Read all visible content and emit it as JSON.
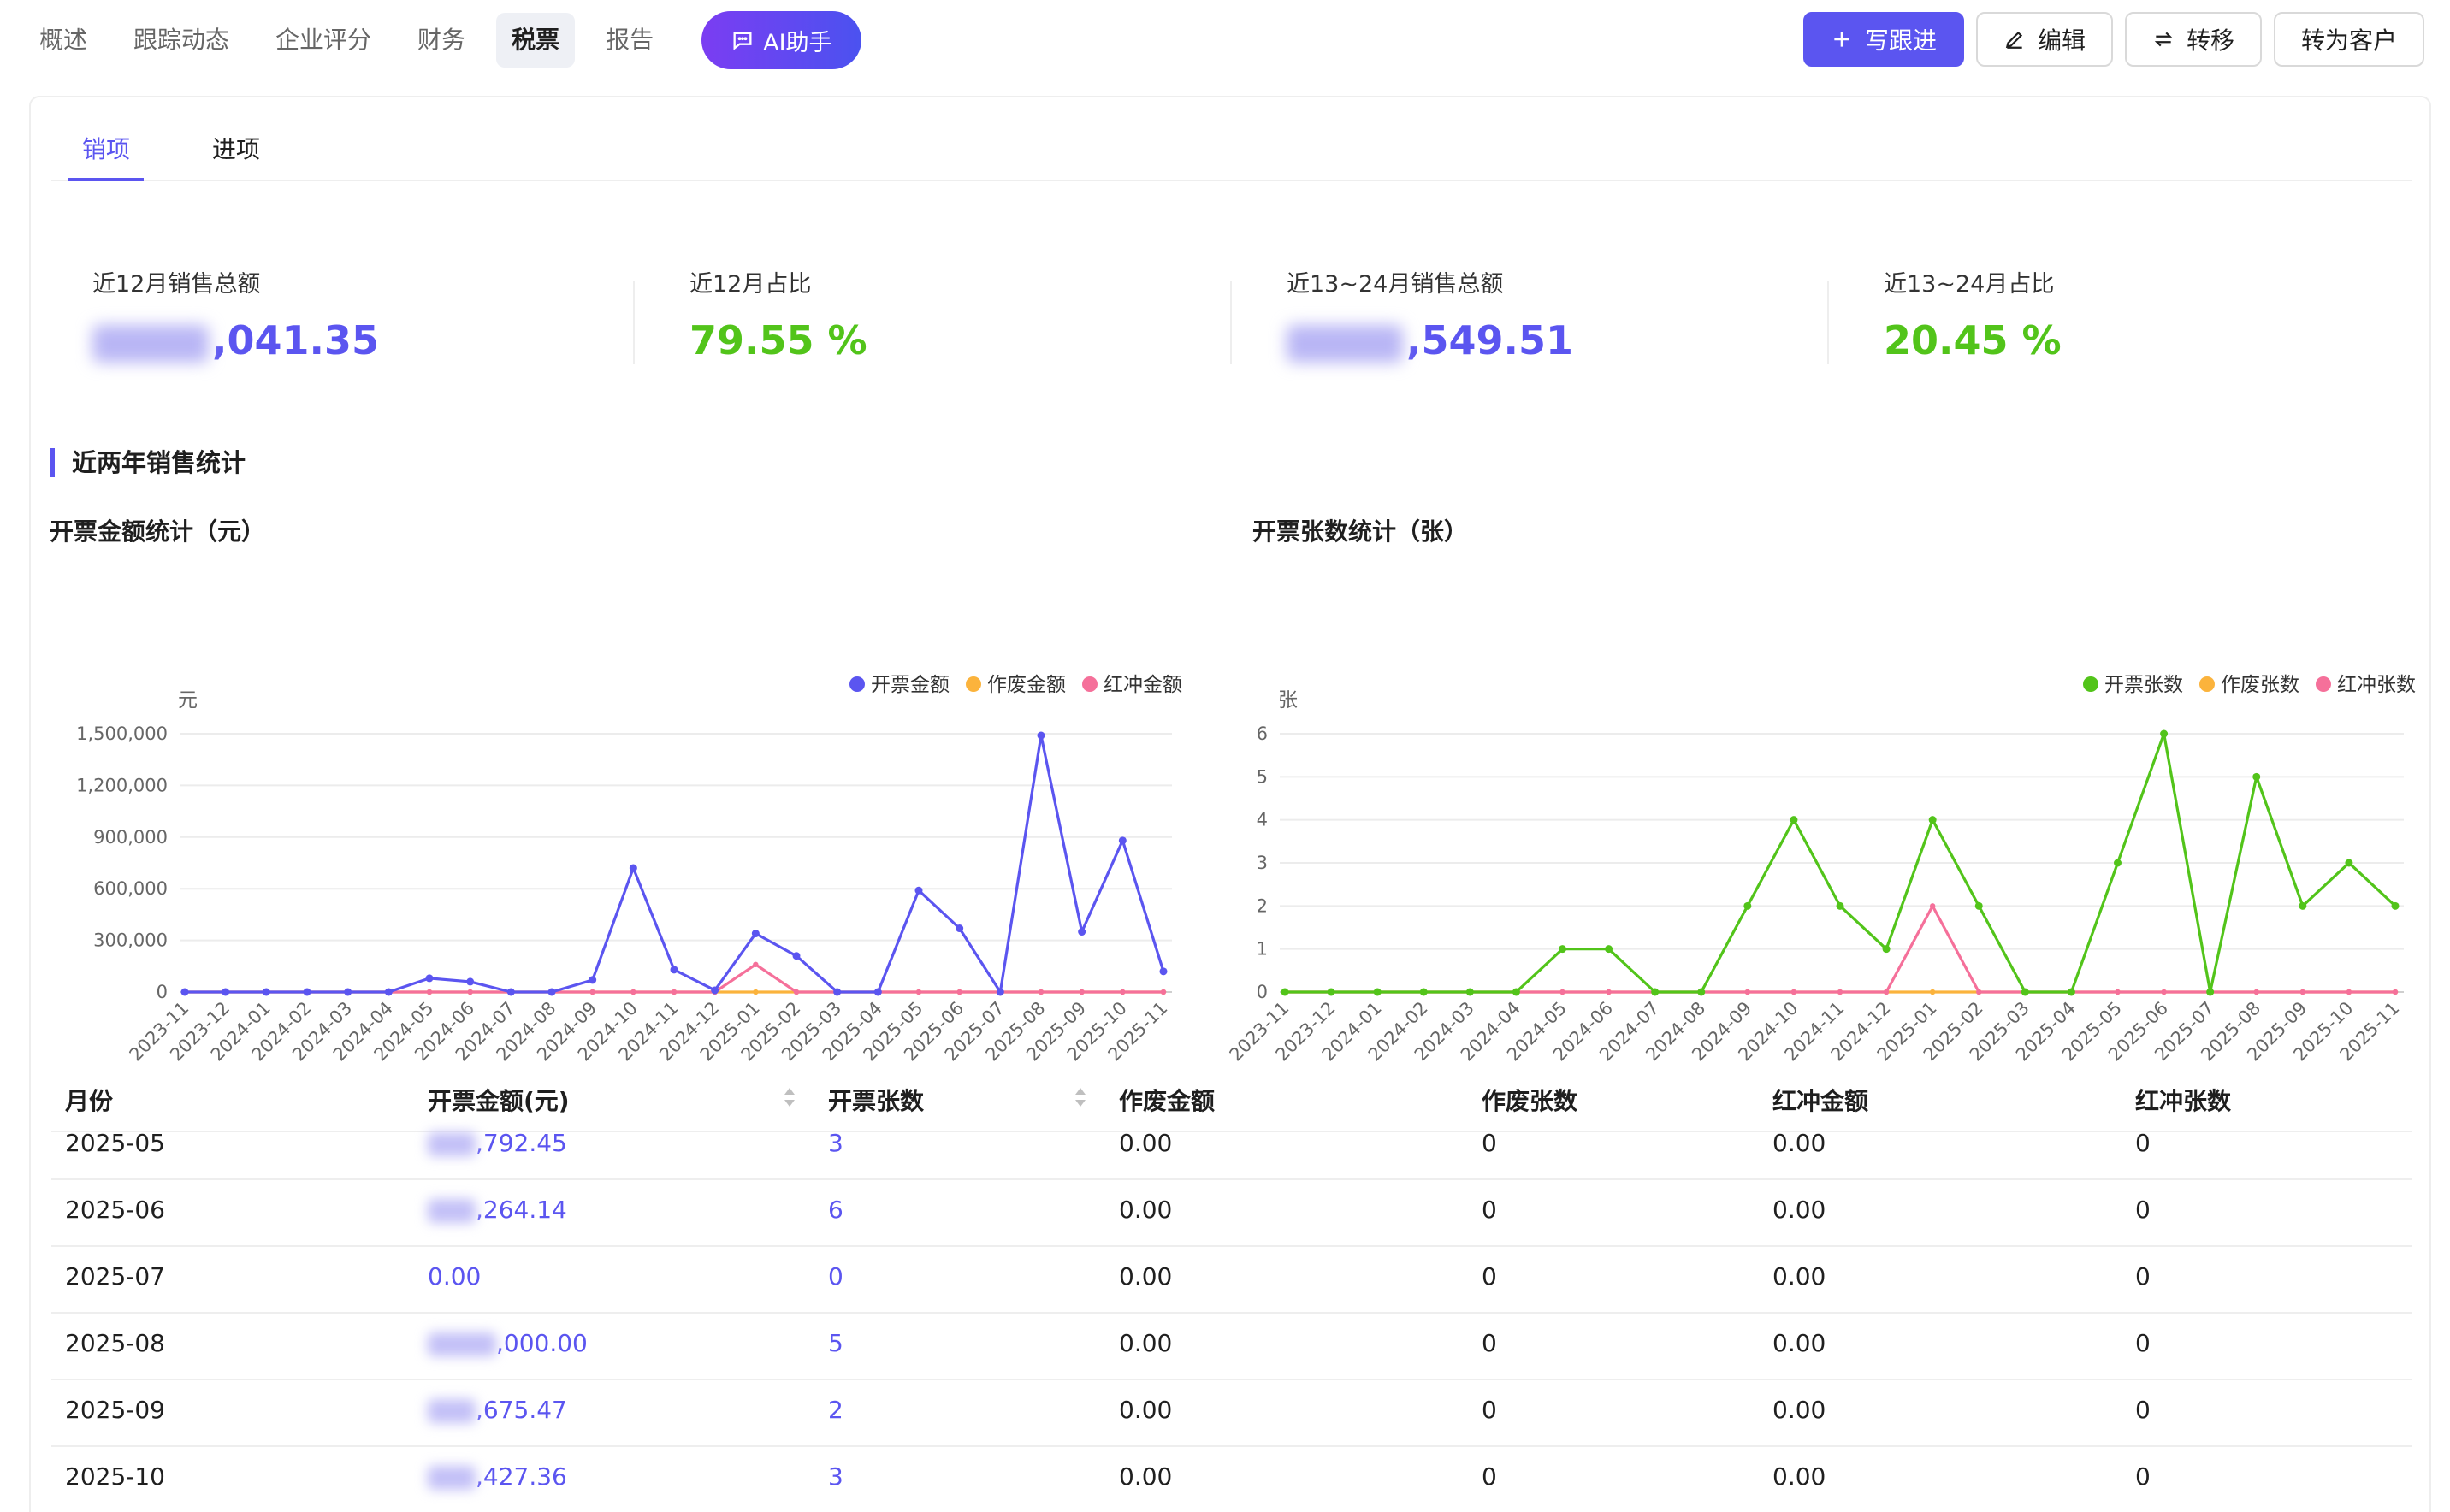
{
  "nav": {
    "tabs": [
      {
        "label": "概述"
      },
      {
        "label": "跟踪动态"
      },
      {
        "label": "企业评分"
      },
      {
        "label": "财务"
      },
      {
        "label": "税票"
      },
      {
        "label": "报告"
      }
    ],
    "active_tab": "税票",
    "ai_label": "AI助手"
  },
  "actions": {
    "follow_label": "写跟进",
    "edit_label": "编辑",
    "transfer_label": "转移",
    "convert_label": "转为客户"
  },
  "subtabs": {
    "sales": "销项",
    "purchase": "进项"
  },
  "stats": {
    "s1": {
      "label": "近12月销售总额",
      "value": ",041.35"
    },
    "s2": {
      "label": "近12月占比",
      "value": "79.55 %"
    },
    "s3": {
      "label": "近13~24月销售总额",
      "value": ",549.51"
    },
    "s4": {
      "label": "近13~24月占比",
      "value": "20.45 %"
    }
  },
  "section_title": "近两年销售统计",
  "charts": {
    "amount_title": "开票金额统计（元）",
    "count_title": "开票张数统计（张）"
  },
  "chart_data": [
    {
      "type": "line",
      "title": "开票金额统计（元）",
      "ylabel": "元",
      "ylim": [
        0,
        1500000
      ],
      "yticks": [
        0,
        300000,
        600000,
        900000,
        1200000,
        1500000
      ],
      "ytick_labels": [
        "0",
        "300,000",
        "600,000",
        "900,000",
        "1,200,000",
        "1,500,000"
      ],
      "legend_position": "top-right",
      "categories": [
        "2023-11",
        "2023-12",
        "2024-01",
        "2024-02",
        "2024-03",
        "2024-04",
        "2024-05",
        "2024-06",
        "2024-07",
        "2024-08",
        "2024-09",
        "2024-10",
        "2024-11",
        "2024-12",
        "2025-01",
        "2025-02",
        "2025-03",
        "2025-04",
        "2025-05",
        "2025-06",
        "2025-07",
        "2025-08",
        "2025-09",
        "2025-10",
        "2025-11"
      ],
      "series": [
        {
          "name": "开票金额",
          "color": "#5b55f0",
          "values": [
            0,
            0,
            0,
            0,
            0,
            0,
            80000,
            60000,
            0,
            0,
            70000,
            720000,
            130000,
            10000,
            340000,
            210000,
            0,
            0,
            590000,
            370000,
            0,
            1490000,
            350000,
            880000,
            120000
          ]
        },
        {
          "name": "作废金额",
          "color": "#fbb33c",
          "values": [
            0,
            0,
            0,
            0,
            0,
            0,
            0,
            0,
            0,
            0,
            0,
            0,
            0,
            0,
            0,
            0,
            0,
            0,
            0,
            0,
            0,
            0,
            0,
            0,
            0
          ]
        },
        {
          "name": "红冲金额",
          "color": "#f5709a",
          "values": [
            0,
            0,
            0,
            0,
            0,
            0,
            0,
            0,
            0,
            0,
            0,
            0,
            0,
            0,
            160000,
            0,
            0,
            0,
            0,
            0,
            0,
            0,
            0,
            0,
            0
          ]
        }
      ]
    },
    {
      "type": "line",
      "title": "开票张数统计（张）",
      "ylabel": "张",
      "ylim": [
        0,
        6
      ],
      "yticks": [
        0,
        1,
        2,
        3,
        4,
        5,
        6
      ],
      "ytick_labels": [
        "0",
        "1",
        "2",
        "3",
        "4",
        "5",
        "6"
      ],
      "legend_position": "top-right",
      "categories": [
        "2023-11",
        "2023-12",
        "2024-01",
        "2024-02",
        "2024-03",
        "2024-04",
        "2024-05",
        "2024-06",
        "2024-07",
        "2024-08",
        "2024-09",
        "2024-10",
        "2024-11",
        "2024-12",
        "2025-01",
        "2025-02",
        "2025-03",
        "2025-04",
        "2025-05",
        "2025-06",
        "2025-07",
        "2025-08",
        "2025-09",
        "2025-10",
        "2025-11"
      ],
      "series": [
        {
          "name": "开票张数",
          "color": "#52c41a",
          "values": [
            0,
            0,
            0,
            0,
            0,
            0,
            1,
            1,
            0,
            0,
            2,
            4,
            2,
            1,
            4,
            2,
            0,
            0,
            3,
            6,
            0,
            5,
            2,
            3,
            2
          ]
        },
        {
          "name": "作废张数",
          "color": "#fbb33c",
          "values": [
            0,
            0,
            0,
            0,
            0,
            0,
            0,
            0,
            0,
            0,
            0,
            0,
            0,
            0,
            0,
            0,
            0,
            0,
            0,
            0,
            0,
            0,
            0,
            0,
            0
          ]
        },
        {
          "name": "红冲张数",
          "color": "#f5709a",
          "values": [
            0,
            0,
            0,
            0,
            0,
            0,
            0,
            0,
            0,
            0,
            0,
            0,
            0,
            0,
            2,
            0,
            0,
            0,
            0,
            0,
            0,
            0,
            0,
            0,
            0
          ]
        }
      ]
    }
  ],
  "table": {
    "headers": {
      "month": "月份",
      "amount": "开票金额(元)",
      "count": "开票张数",
      "void_amount": "作废金额",
      "void_count": "作废张数",
      "red_amount": "红冲金额",
      "red_count": "红冲张数"
    },
    "rows": [
      {
        "month": "2025-05",
        "amount": ",792.45",
        "count": "3",
        "void_amount": "0.00",
        "void_count": "0",
        "red_amount": "0.00",
        "red_count": "0"
      },
      {
        "month": "2025-06",
        "amount": ",264.14",
        "count": "6",
        "void_amount": "0.00",
        "void_count": "0",
        "red_amount": "0.00",
        "red_count": "0"
      },
      {
        "month": "2025-07",
        "amount": "0.00",
        "count": "0",
        "void_amount": "0.00",
        "void_count": "0",
        "red_amount": "0.00",
        "red_count": "0"
      },
      {
        "month": "2025-08",
        "amount": ",000.00",
        "count": "5",
        "void_amount": "0.00",
        "void_count": "0",
        "red_amount": "0.00",
        "red_count": "0"
      },
      {
        "month": "2025-09",
        "amount": ",675.47",
        "count": "2",
        "void_amount": "0.00",
        "void_count": "0",
        "red_amount": "0.00",
        "red_count": "0"
      },
      {
        "month": "2025-10",
        "amount": ",427.36",
        "count": "3",
        "void_amount": "0.00",
        "void_count": "0",
        "red_amount": "0.00",
        "red_count": "0"
      }
    ]
  }
}
